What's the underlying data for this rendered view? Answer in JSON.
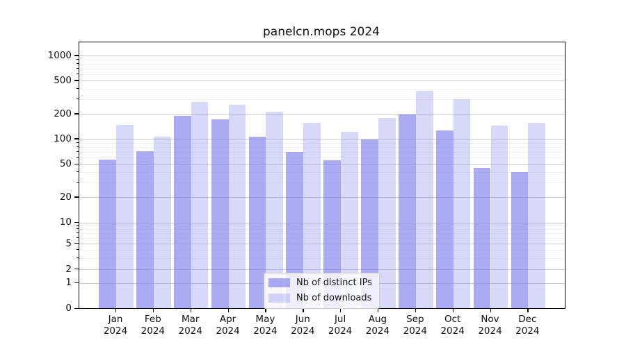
{
  "chart_data": {
    "type": "bar",
    "title": "panelcn.mops 2024",
    "categories": [
      "Jan",
      "Feb",
      "Mar",
      "Apr",
      "May",
      "Jun",
      "Jul",
      "Aug",
      "Sep",
      "Oct",
      "Nov",
      "Dec"
    ],
    "x_year_label": "2024",
    "series": [
      {
        "name": "Nb of distinct IPs",
        "color": "rgba(136,136,238,0.70)",
        "values": [
          57,
          72,
          189,
          174,
          106,
          70,
          56,
          98,
          196,
          128,
          45,
          40
        ]
      },
      {
        "name": "Nb of downloads",
        "color": "rgba(136,136,238,0.33)",
        "values": [
          147,
          106,
          280,
          258,
          211,
          158,
          121,
          180,
          376,
          300,
          144,
          158
        ]
      }
    ],
    "y_ticks": [
      0,
      1,
      2,
      5,
      10,
      20,
      50,
      100,
      200,
      500,
      1000
    ],
    "y_minor_gridlines": [
      3,
      4,
      6,
      7,
      8,
      9,
      30,
      40,
      60,
      70,
      80,
      90,
      300,
      400,
      600,
      700,
      800,
      900
    ],
    "y_scale": "log-with-zero",
    "ylim": [
      0,
      1100
    ],
    "grid": true,
    "legend_position": "lower center",
    "colors": {
      "grid_major": "#c9c9c9",
      "grid_minor": "#f0f0f0",
      "axis": "#000000",
      "bar_base": "#8888ee"
    }
  }
}
